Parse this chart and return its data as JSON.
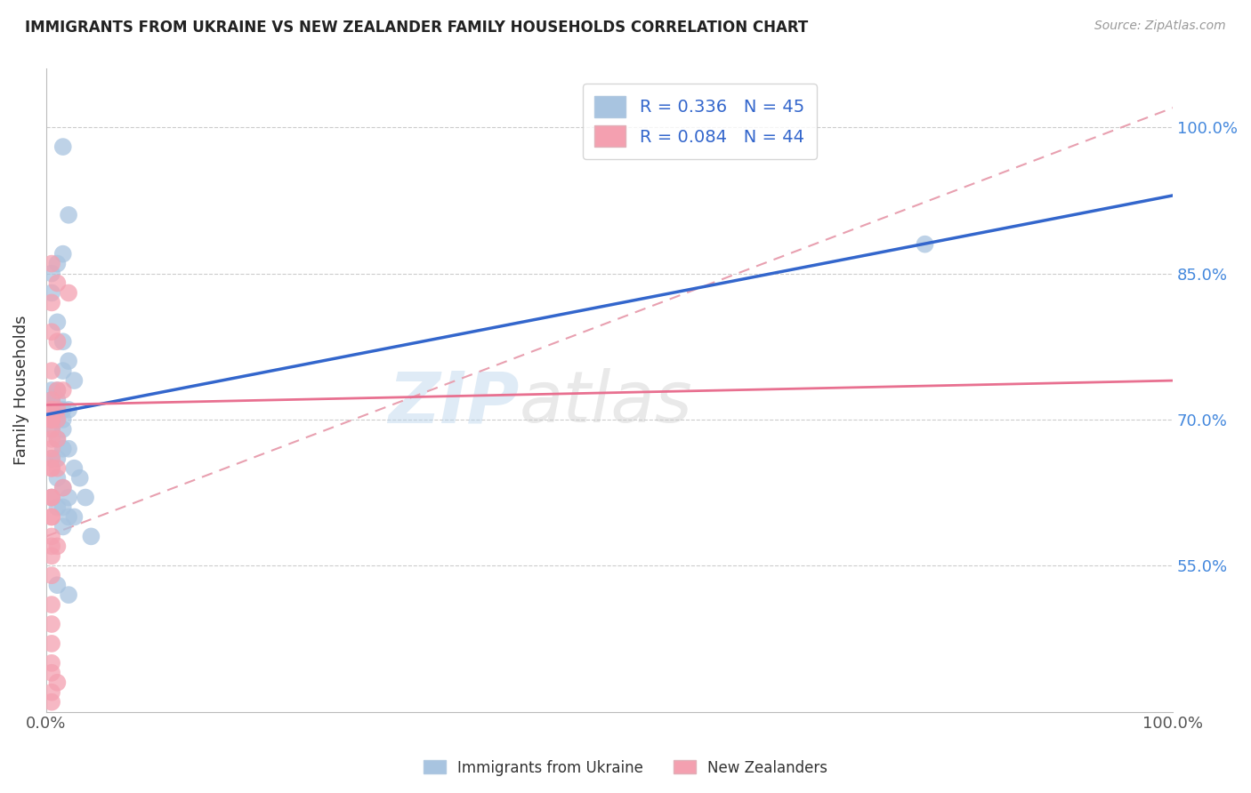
{
  "title": "IMMIGRANTS FROM UKRAINE VS NEW ZEALANDER FAMILY HOUSEHOLDS CORRELATION CHART",
  "source": "Source: ZipAtlas.com",
  "xlabel_blue": "Immigrants from Ukraine",
  "xlabel_pink": "New Zealanders",
  "ylabel": "Family Households",
  "xlim": [
    0,
    100
  ],
  "ylim": [
    40,
    106
  ],
  "blue_R": 0.336,
  "blue_N": 45,
  "pink_R": 0.084,
  "pink_N": 44,
  "blue_color": "#a8c4e0",
  "pink_color": "#f4a0b0",
  "blue_line_color": "#3366cc",
  "pink_line_color": "#e87090",
  "dash_line_color": "#e8a0b0",
  "ytick_labels": [
    "55.0%",
    "70.0%",
    "85.0%",
    "100.0%"
  ],
  "ytick_values": [
    55,
    70,
    85,
    100
  ],
  "xtick_labels": [
    "0.0%",
    "100.0%"
  ],
  "xtick_values": [
    0,
    100
  ],
  "blue_scatter_x": [
    1.5,
    2.0,
    1.5,
    1.0,
    0.5,
    0.5,
    1.0,
    1.5,
    2.0,
    1.5,
    2.5,
    1.0,
    0.5,
    0.5,
    0.5,
    1.0,
    1.5,
    2.0,
    1.0,
    1.5,
    0.5,
    1.0,
    1.5,
    0.5,
    1.0,
    2.0,
    1.5,
    1.0,
    0.5,
    2.5,
    3.0,
    1.0,
    1.5,
    2.0,
    0.5,
    3.5,
    1.5,
    1.0,
    2.0,
    2.5,
    1.5,
    4.0,
    1.0,
    2.0,
    78.0
  ],
  "blue_scatter_y": [
    98,
    91,
    87,
    86,
    85,
    83,
    80,
    78,
    76,
    75,
    74,
    73,
    73,
    72,
    72,
    72,
    71,
    71,
    71,
    70,
    70,
    70,
    69,
    69,
    68,
    67,
    67,
    66,
    66,
    65,
    64,
    64,
    63,
    62,
    62,
    62,
    61,
    61,
    60,
    60,
    59,
    58,
    53,
    52,
    88
  ],
  "pink_scatter_x": [
    0.5,
    1.0,
    2.0,
    0.5,
    0.5,
    1.0,
    0.5,
    1.0,
    1.5,
    0.5,
    0.5,
    0.5,
    1.0,
    0.5,
    0.5,
    0.5,
    1.0,
    0.5,
    0.5,
    1.0,
    0.5,
    0.5,
    0.5,
    0.5,
    1.0,
    0.5,
    1.5,
    0.5,
    0.5,
    0.5,
    0.5,
    0.5,
    1.0,
    0.5,
    0.5,
    0.5,
    0.5,
    0.5,
    0.5,
    0.5,
    0.5,
    1.0,
    0.5,
    0.5
  ],
  "pink_scatter_y": [
    86,
    84,
    83,
    82,
    79,
    78,
    75,
    73,
    73,
    72,
    71,
    71,
    71,
    70,
    70,
    70,
    70,
    70,
    69,
    68,
    68,
    67,
    66,
    65,
    65,
    65,
    63,
    62,
    62,
    60,
    60,
    58,
    57,
    57,
    56,
    54,
    51,
    49,
    47,
    45,
    44,
    43,
    42,
    41
  ],
  "blue_line_x0": 0,
  "blue_line_y0": 70.5,
  "blue_line_x1": 100,
  "blue_line_y1": 93.0,
  "pink_line_x0": 0,
  "pink_line_y0": 71.5,
  "pink_line_x1": 100,
  "pink_line_y1": 74.0,
  "dash_line_x0": 0,
  "dash_line_y0": 58,
  "dash_line_x1": 100,
  "dash_line_y1": 102,
  "watermark_line1": "ZIP",
  "watermark_line2": "atlas",
  "legend_fontsize": 14,
  "title_fontsize": 12,
  "background_color": "#ffffff"
}
